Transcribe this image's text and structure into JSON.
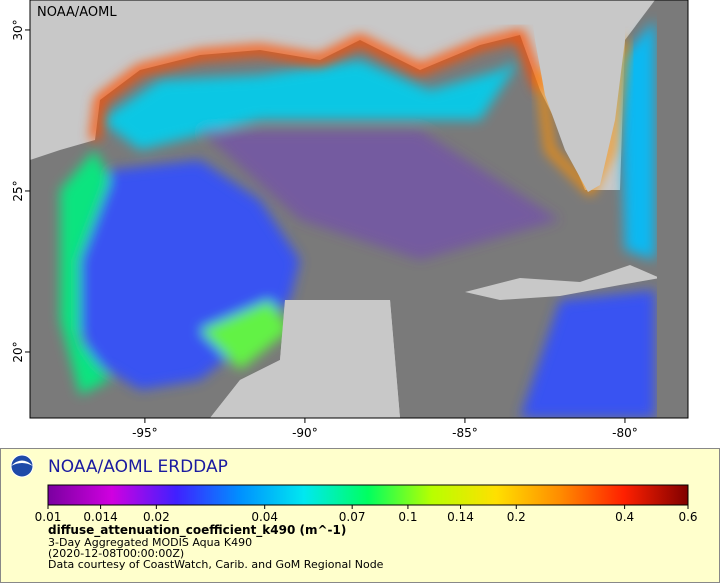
{
  "map": {
    "label": "NOAA/AOML",
    "xlim": [
      -98.59,
      -78.03
    ],
    "ylim": [
      17.95,
      30.93
    ],
    "xticks": [
      {
        "value": -95,
        "label": "-95°"
      },
      {
        "value": -90,
        "label": "-90°"
      },
      {
        "value": -85,
        "label": "-85°"
      },
      {
        "value": -80,
        "label": "-80°"
      }
    ],
    "yticks": [
      {
        "value": 20,
        "label": "20°"
      },
      {
        "value": 25,
        "label": "25°"
      },
      {
        "value": 30,
        "label": "30°"
      }
    ]
  },
  "legend": {
    "title": "NOAA/AOML ERDDAP",
    "colorbar": {
      "range": [
        0.01,
        0.6
      ],
      "scale": "log",
      "ticks": [
        0.01,
        0.014,
        0.02,
        0.04,
        0.07,
        0.1,
        0.14,
        0.2,
        0.4,
        0.6
      ],
      "colors": [
        "#7a00a0",
        "#d000e0",
        "#4020ff",
        "#0090ff",
        "#00e8f0",
        "#00ff60",
        "#b8ff00",
        "#ffe000",
        "#ff8c00",
        "#ff2000",
        "#800000"
      ]
    },
    "variable": "diffuse_attenuation_coefficient_k490 (m^-1)",
    "lines": [
      "3-Day Aggregated MODIS Aqua K490",
      "(2020-12-08T00:00:00Z)",
      "Data courtesy of CoastWatch, Carib. and GoM Regional Node"
    ]
  }
}
